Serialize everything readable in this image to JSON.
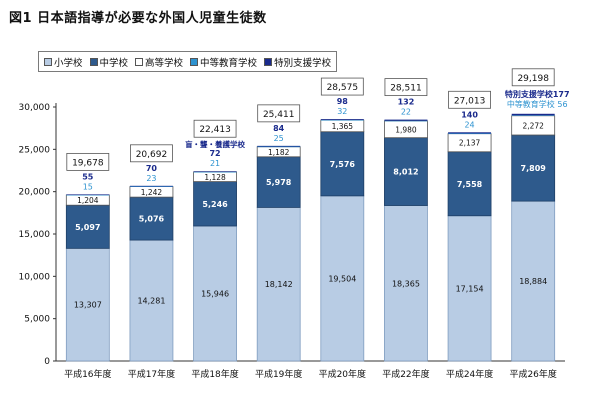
{
  "figure_title": "図1 日本語指導が必要な外国人児童生徒数",
  "chart_data": {
    "type": "bar",
    "stacked": true,
    "categories": [
      "平成16年度",
      "平成17年度",
      "平成18年度",
      "平成19年度",
      "平成20年度",
      "平成22年度",
      "平成24年度",
      "平成26年度"
    ],
    "ylim": [
      0,
      30000
    ],
    "yticks": [
      0,
      5000,
      10000,
      15000,
      20000,
      25000,
      30000
    ],
    "ytick_labels": [
      "0",
      "5,000",
      "10,000",
      "15,000",
      "20,000",
      "25,000",
      "30,000"
    ],
    "grid": false,
    "legend_position": "top-left",
    "series": [
      {
        "name": "小学校",
        "color": "#b8cce4",
        "values": [
          13307,
          14281,
          15946,
          18142,
          19504,
          18365,
          17154,
          18884
        ],
        "labels": [
          "13,307",
          "14,281",
          "15,946",
          "18,142",
          "19,504",
          "18,365",
          "17,154",
          "18,884"
        ]
      },
      {
        "name": "中学校",
        "color": "#2e5a8c",
        "values": [
          5097,
          5076,
          5246,
          5978,
          7576,
          8012,
          7558,
          7809
        ],
        "labels": [
          "5,097",
          "5,076",
          "5,246",
          "5,978",
          "7,576",
          "8,012",
          "7,558",
          "7,809"
        ]
      },
      {
        "name": "高等学校",
        "color": "#ffffff",
        "values": [
          1204,
          1242,
          1128,
          1182,
          1365,
          1980,
          2137,
          2272
        ],
        "labels": [
          "1,204",
          "1,242",
          "1,128",
          "1,182",
          "1,365",
          "1,980",
          "2,137",
          "2,272"
        ]
      },
      {
        "name": "中等教育学校",
        "color": "#2e93d0",
        "values": [
          15,
          23,
          21,
          25,
          32,
          22,
          24,
          56
        ],
        "labels": [
          "15",
          "23",
          "21",
          "25",
          "32",
          "22",
          "24",
          ""
        ]
      },
      {
        "name": "特別支援学校",
        "color": "#1a2a8c",
        "values": [
          55,
          70,
          72,
          84,
          98,
          132,
          140,
          177
        ],
        "labels": [
          "55",
          "70",
          "72",
          "84",
          "98",
          "132",
          "140",
          ""
        ]
      }
    ],
    "totals": [
      19678,
      20692,
      22413,
      25411,
      28575,
      28511,
      27013,
      29198
    ],
    "total_labels": [
      "19,678",
      "20,692",
      "22,413",
      "25,411",
      "28,575",
      "28,511",
      "27,013",
      "29,198"
    ],
    "annotations": {
      "h18_note": "盲・聾・養護学校",
      "h26_special": "特別支援学校177",
      "h26_secondary": "中等教育学校 56"
    }
  }
}
